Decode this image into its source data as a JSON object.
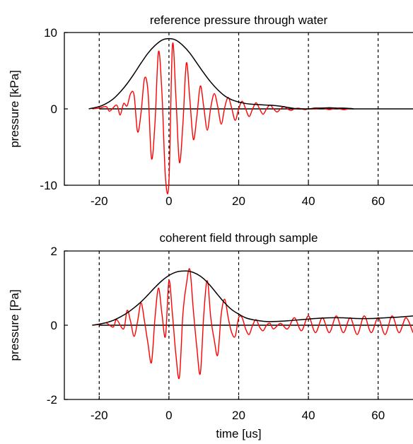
{
  "chart_data": [
    {
      "type": "line",
      "title": "reference pressure through water",
      "xlabel": "",
      "ylabel": "pressure [kPa]",
      "xlim": [
        -30,
        70
      ],
      "ylim": [
        -10,
        10
      ],
      "xticks": [
        -20,
        0,
        20,
        40,
        60
      ],
      "yticks": [
        -10,
        0,
        10
      ],
      "xtick_labels": [
        "-20",
        "0",
        "20",
        "40",
        "60"
      ],
      "ytick_labels": [
        "-10",
        "0",
        "10"
      ],
      "grid": "vertical dashed lines at x ticks, dashed zero line",
      "zero_line_extends": [
        -20,
        70
      ],
      "series": [
        {
          "color": "#ff0000",
          "kind": "oscillating signal",
          "x": [
            -22,
            -20,
            -18,
            -17,
            -15,
            -14,
            -13,
            -12,
            -11,
            -10,
            -9,
            -8,
            -7,
            -6,
            -5,
            -4,
            -3,
            -2,
            -1,
            0,
            1,
            2,
            3,
            4,
            5,
            6,
            7,
            8,
            9,
            10,
            11,
            12,
            13,
            14,
            15,
            16,
            17,
            18,
            19,
            20,
            21,
            22,
            23,
            24,
            25,
            26,
            27,
            28,
            29,
            30,
            31,
            32,
            33,
            34,
            35,
            36,
            37,
            38,
            39,
            40,
            41,
            42,
            44,
            46,
            48,
            50,
            52,
            53
          ],
          "y": [
            0,
            0.1,
            0.3,
            -0.3,
            0.5,
            -0.8,
            0.7,
            0.4,
            2.0,
            1.8,
            -3.0,
            -0.5,
            4.0,
            2.2,
            -6.5,
            -1.8,
            7.5,
            2.0,
            -9.0,
            -9.5,
            8.3,
            1.5,
            -7.0,
            -2.0,
            6.0,
            1.2,
            -4.0,
            -1.0,
            3.0,
            0.2,
            -2.8,
            0.2,
            2.0,
            0.3,
            -2.0,
            0.2,
            1.5,
            0.1,
            -1.5,
            0.0,
            1.0,
            0.0,
            -1.0,
            0.0,
            0.8,
            0.0,
            -0.7,
            0.0,
            0.5,
            0.0,
            -0.4,
            0.0,
            0.3,
            0.0,
            -0.2,
            0.0,
            0.1,
            0.0,
            -0.1,
            0.0,
            0.0,
            0.0,
            0.1,
            -0.1,
            0.1,
            -0.1,
            0.05,
            0.0
          ]
        },
        {
          "color": "#000000",
          "kind": "envelope",
          "x": [
            -23,
            -20,
            -18,
            -16,
            -14,
            -12,
            -10,
            -8,
            -6,
            -4,
            -2,
            0,
            2,
            4,
            6,
            8,
            10,
            12,
            14,
            16,
            18,
            20,
            22,
            24,
            26,
            28,
            30,
            32,
            34,
            36,
            38,
            40,
            42,
            44,
            46,
            48,
            50,
            52,
            53
          ],
          "y": [
            0,
            0.3,
            0.7,
            1.3,
            2.2,
            3.3,
            4.6,
            6.0,
            7.3,
            8.3,
            9.0,
            9.2,
            9.0,
            8.3,
            7.3,
            6.0,
            4.7,
            3.5,
            2.5,
            1.7,
            1.2,
            0.9,
            0.7,
            0.6,
            0.55,
            0.5,
            0.45,
            0.35,
            0.2,
            0.05,
            0.0,
            0.0,
            0.1,
            0.1,
            0.15,
            0.1,
            0.1,
            0.05,
            0.0
          ]
        }
      ]
    },
    {
      "type": "line",
      "title": "coherent field through sample",
      "xlabel": "time [us]",
      "ylabel": "pressure [Pa]",
      "xlim": [
        -30,
        70
      ],
      "ylim": [
        -2,
        2
      ],
      "xticks": [
        -20,
        0,
        20,
        40,
        60
      ],
      "yticks": [
        -2,
        0,
        2
      ],
      "xtick_labels": [
        "-20",
        "0",
        "20",
        "40",
        "60"
      ],
      "ytick_labels": [
        "-2",
        "0",
        "2"
      ],
      "grid": "vertical dashed lines at x ticks, dashed zero line",
      "zero_line_extends": [
        -20,
        70
      ],
      "series": [
        {
          "color": "#ff0000",
          "kind": "oscillating signal",
          "x": [
            -22,
            -20,
            -18,
            -16,
            -15,
            -13,
            -12,
            -11,
            -10,
            -9,
            -8,
            -7,
            -6,
            -5,
            -4,
            -3,
            -2,
            -1,
            0,
            1,
            2,
            3,
            4,
            5,
            6,
            7,
            8,
            9,
            10,
            11,
            12,
            13,
            14,
            15,
            16,
            17,
            18,
            19,
            20,
            21,
            22,
            23,
            24,
            25,
            26,
            27,
            28,
            29,
            30,
            32,
            34,
            36,
            38,
            40,
            42,
            44,
            46,
            48,
            50,
            52,
            54,
            56,
            58,
            60,
            62,
            64,
            66,
            68,
            70
          ],
          "y": [
            0,
            0.02,
            0.06,
            -0.05,
            0.15,
            -0.1,
            0.4,
            0.1,
            -0.3,
            0.1,
            0.6,
            0.1,
            -0.5,
            -1.0,
            0.2,
            1.0,
            0.3,
            -0.3,
            1.2,
            0.3,
            -0.8,
            -1.4,
            0.3,
            1.1,
            1.5,
            0.4,
            -0.6,
            -1.3,
            0.3,
            1.2,
            0.2,
            -0.4,
            -0.8,
            0.3,
            0.7,
            0.2,
            -0.2,
            -0.3,
            0.2,
            0.2,
            -0.1,
            -0.25,
            0.0,
            0.15,
            -0.05,
            -0.15,
            0.0,
            0.05,
            -0.1,
            0.05,
            -0.1,
            0.2,
            -0.15,
            0.25,
            -0.2,
            0.2,
            -0.2,
            0.25,
            -0.2,
            0.2,
            -0.25,
            0.25,
            -0.2,
            0.2,
            -0.25,
            0.25,
            -0.2,
            0.2,
            -0.2
          ]
        },
        {
          "color": "#000000",
          "kind": "envelope",
          "x": [
            -22,
            -20,
            -18,
            -16,
            -14,
            -12,
            -10,
            -8,
            -6,
            -4,
            -2,
            0,
            2,
            4,
            6,
            8,
            10,
            12,
            14,
            16,
            18,
            20,
            22,
            24,
            26,
            28,
            30,
            34,
            38,
            42,
            46,
            50,
            54,
            58,
            62,
            66,
            70
          ],
          "y": [
            0,
            0.03,
            0.07,
            0.13,
            0.22,
            0.33,
            0.47,
            0.63,
            0.82,
            1.02,
            1.2,
            1.34,
            1.43,
            1.46,
            1.45,
            1.38,
            1.25,
            1.05,
            0.82,
            0.6,
            0.42,
            0.3,
            0.2,
            0.15,
            0.12,
            0.1,
            0.1,
            0.12,
            0.15,
            0.18,
            0.2,
            0.2,
            0.18,
            0.18,
            0.2,
            0.22,
            0.25
          ]
        }
      ]
    }
  ]
}
